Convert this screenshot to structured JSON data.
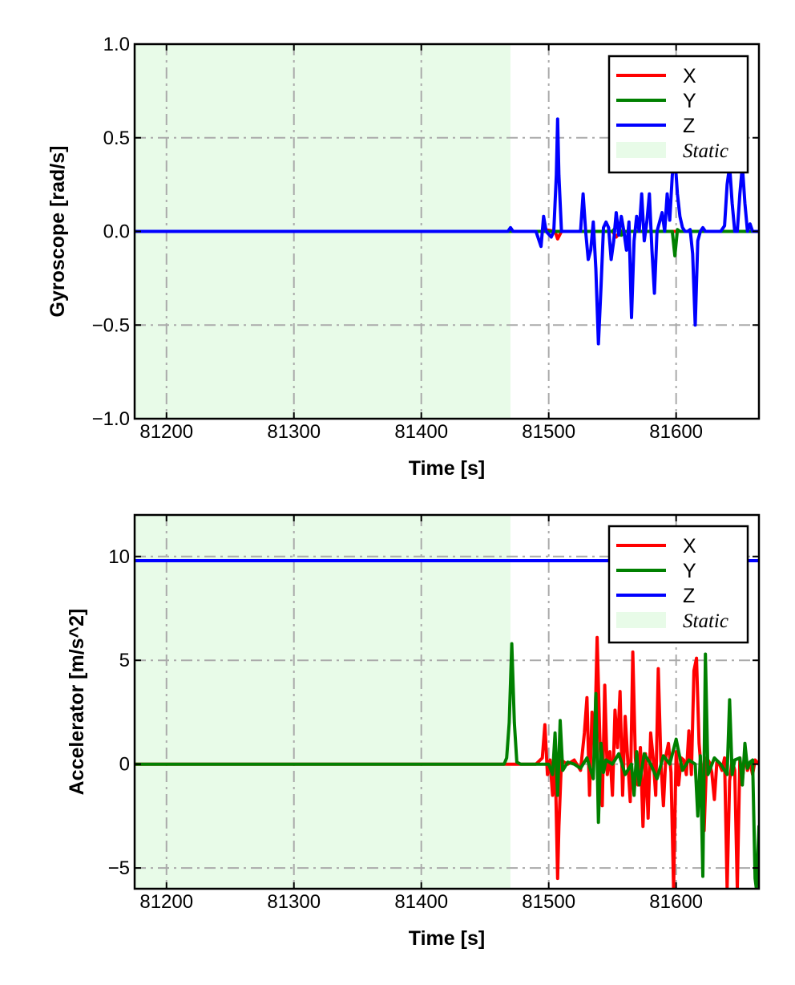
{
  "chart_data": [
    {
      "type": "line",
      "xlabel": "Time [s]",
      "ylabel": "Gyroscope [rad/s]",
      "xlim": [
        81175,
        81665
      ],
      "ylim": [
        -1.0,
        1.0
      ],
      "xticks": [
        81200,
        81300,
        81400,
        81500,
        81600
      ],
      "xtick_labels": [
        "81200",
        "81300",
        "81400",
        "81500",
        "81600"
      ],
      "yticks": [
        -1.0,
        -0.5,
        0.0,
        0.5,
        1.0
      ],
      "ytick_labels": [
        "−1.0",
        "−0.5",
        "0.0",
        "0.5",
        "1.0"
      ],
      "grid": true,
      "legend_position": "top-right",
      "static_span": [
        81175,
        81470
      ],
      "static_label": "Static",
      "static_color": "#e8fbe8",
      "series": [
        {
          "name": "X",
          "color": "#ff0000",
          "x": [
            81175,
            81470,
            81495,
            81497,
            81505,
            81507,
            81510,
            81550,
            81553,
            81556,
            81600,
            81665
          ],
          "y": [
            0,
            0,
            0,
            0.01,
            0,
            -0.04,
            0,
            0,
            -0.03,
            0,
            0,
            0
          ]
        },
        {
          "name": "Y",
          "color": "#008000",
          "x": [
            81175,
            81470,
            81550,
            81555,
            81557,
            81560,
            81597,
            81599,
            81601,
            81603,
            81665
          ],
          "y": [
            0,
            0,
            0,
            0.04,
            -0.02,
            0,
            0,
            -0.13,
            0.01,
            0,
            0
          ]
        },
        {
          "name": "Z",
          "color": "#0000ff",
          "x": [
            81175,
            81468,
            81470,
            81472,
            81490,
            81494,
            81496,
            81498,
            81502,
            81504,
            81506,
            81507,
            81508,
            81510,
            81515,
            81525,
            81527,
            81529,
            81531,
            81533,
            81535,
            81537,
            81539,
            81541,
            81543,
            81545,
            81547,
            81549,
            81551,
            81553,
            81555,
            81557,
            81559,
            81561,
            81563,
            81565,
            81567,
            81569,
            81571,
            81573,
            81575,
            81577,
            81579,
            81581,
            81583,
            81585,
            81587,
            81589,
            81591,
            81593,
            81595,
            81597,
            81599,
            81601,
            81603,
            81605,
            81607,
            81609,
            81611,
            81613,
            81615,
            81617,
            81619,
            81621,
            81623,
            81625,
            81630,
            81635,
            81638,
            81640,
            81642,
            81644,
            81646,
            81648,
            81650,
            81652,
            81654,
            81656,
            81658,
            81660,
            81665
          ],
          "y": [
            0,
            0,
            0.02,
            0,
            0,
            -0.08,
            0.08,
            0,
            -0.03,
            0,
            0.3,
            0.6,
            0.3,
            0,
            0,
            0,
            0.2,
            0,
            -0.15,
            -0.1,
            0.05,
            -0.2,
            -0.6,
            -0.3,
            0.02,
            0.05,
            0.02,
            -0.15,
            -0.05,
            0.1,
            -0.02,
            0.08,
            0,
            -0.1,
            0.05,
            -0.46,
            -0.05,
            0.08,
            0,
            0.2,
            -0.05,
            0.05,
            0.2,
            -0.1,
            -0.33,
            0,
            0.05,
            0.1,
            0,
            0.2,
            0.06,
            0.3,
            0.4,
            0.2,
            0.08,
            0.02,
            0,
            0,
            0.01,
            -0.12,
            -0.5,
            -0.05,
            0,
            0.02,
            0,
            0,
            0,
            0,
            0.03,
            0.25,
            0.35,
            0.15,
            0,
            0,
            0.2,
            0.35,
            0.15,
            0,
            0.04,
            0,
            0
          ]
        }
      ]
    },
    {
      "type": "line",
      "xlabel": "Time [s]",
      "ylabel": "Accelerator [m/s^2]",
      "xlim": [
        81175,
        81665
      ],
      "ylim": [
        -6,
        12
      ],
      "xticks": [
        81200,
        81300,
        81400,
        81500,
        81600
      ],
      "xtick_labels": [
        "81200",
        "81300",
        "81400",
        "81500",
        "81600"
      ],
      "yticks": [
        -5,
        0,
        5,
        10
      ],
      "ytick_labels": [
        "−5",
        "0",
        "5",
        "10"
      ],
      "grid": true,
      "legend_position": "top-right",
      "static_span": [
        81175,
        81470
      ],
      "static_label": "Static",
      "static_color": "#e8fbe8",
      "series": [
        {
          "name": "X",
          "color": "#ff0000",
          "x": [
            81175,
            81470,
            81490,
            81495,
            81497,
            81499,
            81501,
            81503,
            81505,
            81507,
            81508,
            81510,
            81512,
            81515,
            81520,
            81525,
            81528,
            81530,
            81532,
            81534,
            81536,
            81538,
            81540,
            81542,
            81544,
            81546,
            81548,
            81550,
            81552,
            81554,
            81556,
            81558,
            81560,
            81562,
            81564,
            81566,
            81568,
            81570,
            81572,
            81574,
            81576,
            81578,
            81580,
            81582,
            81584,
            81586,
            81588,
            81590,
            81592,
            81594,
            81596,
            81598,
            81600,
            81602,
            81604,
            81606,
            81608,
            81610,
            81612,
            81614,
            81616,
            81618,
            81620,
            81622,
            81624,
            81626,
            81628,
            81630,
            81632,
            81634,
            81636,
            81638,
            81640,
            81642,
            81644,
            81646,
            81648,
            81650,
            81652,
            81654,
            81656,
            81658,
            81660,
            81662,
            81665
          ],
          "y": [
            0,
            0,
            0,
            0.3,
            1.9,
            -0.5,
            0.2,
            -1.5,
            0.5,
            -5.5,
            -3,
            0.2,
            0.1,
            0,
            0.2,
            -0.3,
            1.5,
            3.2,
            -1.5,
            2.5,
            0.8,
            6.1,
            1.5,
            -2,
            3.8,
            -0.5,
            0.6,
            -1.5,
            2.6,
            0.8,
            3.5,
            -1.5,
            2.3,
            0.2,
            -1.8,
            5.4,
            0.3,
            -1,
            0.8,
            -3,
            0.5,
            -2.6,
            1.5,
            0.3,
            -1.5,
            4.6,
            0.2,
            -2,
            0.4,
            1,
            -0.4,
            -6,
            0.6,
            -1,
            0.3,
            0.2,
            -0.5,
            1.6,
            -0.5,
            4.5,
            5.1,
            1,
            -0.5,
            -3.2,
            0.3,
            0.1,
            -0.4,
            -1.7,
            0.1,
            0,
            -0.3,
            0.3,
            -6,
            -0.8,
            0.2,
            -0.3,
            -6,
            0.3,
            -0.8,
            0.5,
            -0.3,
            0.1,
            -0.5,
            0.2,
            0
          ]
        },
        {
          "name": "Y",
          "color": "#008000",
          "x": [
            81175,
            81465,
            81467,
            81469,
            81471,
            81473,
            81475,
            81478,
            81490,
            81500,
            81503,
            81505,
            81507,
            81509,
            81511,
            81515,
            81520,
            81525,
            81530,
            81535,
            81537,
            81539,
            81541,
            81543,
            81545,
            81550,
            81555,
            81560,
            81565,
            81567,
            81569,
            81571,
            81575,
            81580,
            81585,
            81590,
            81595,
            81600,
            81605,
            81610,
            81615,
            81617,
            81619,
            81621,
            81623,
            81625,
            81630,
            81635,
            81640,
            81642,
            81644,
            81646,
            81650,
            81652,
            81654,
            81656,
            81658,
            81660,
            81662,
            81663,
            81665
          ],
          "y": [
            0,
            0,
            0.3,
            2,
            5.8,
            2,
            0.1,
            0,
            0,
            0,
            -0.5,
            1.5,
            -1.5,
            2.1,
            -0.3,
            0.1,
            0,
            -0.2,
            0.3,
            -0.7,
            3.4,
            -2.8,
            1,
            -0.4,
            0.2,
            0,
            0.5,
            -0.5,
            0,
            -1.5,
            0.6,
            -1,
            0.5,
            0,
            -0.7,
            0.4,
            0,
            1.2,
            -0.3,
            0.2,
            0,
            -2.5,
            0.4,
            -5.4,
            5.3,
            -0.5,
            0.3,
            0,
            -0.5,
            3.1,
            -0.5,
            0.2,
            0.3,
            -1,
            1,
            -0.2,
            0.1,
            0.2,
            -5.5,
            -6,
            -3
          ]
        },
        {
          "name": "Z",
          "color": "#0000ff",
          "x": [
            81175,
            81665
          ],
          "y": [
            9.8,
            9.8
          ]
        }
      ]
    }
  ]
}
